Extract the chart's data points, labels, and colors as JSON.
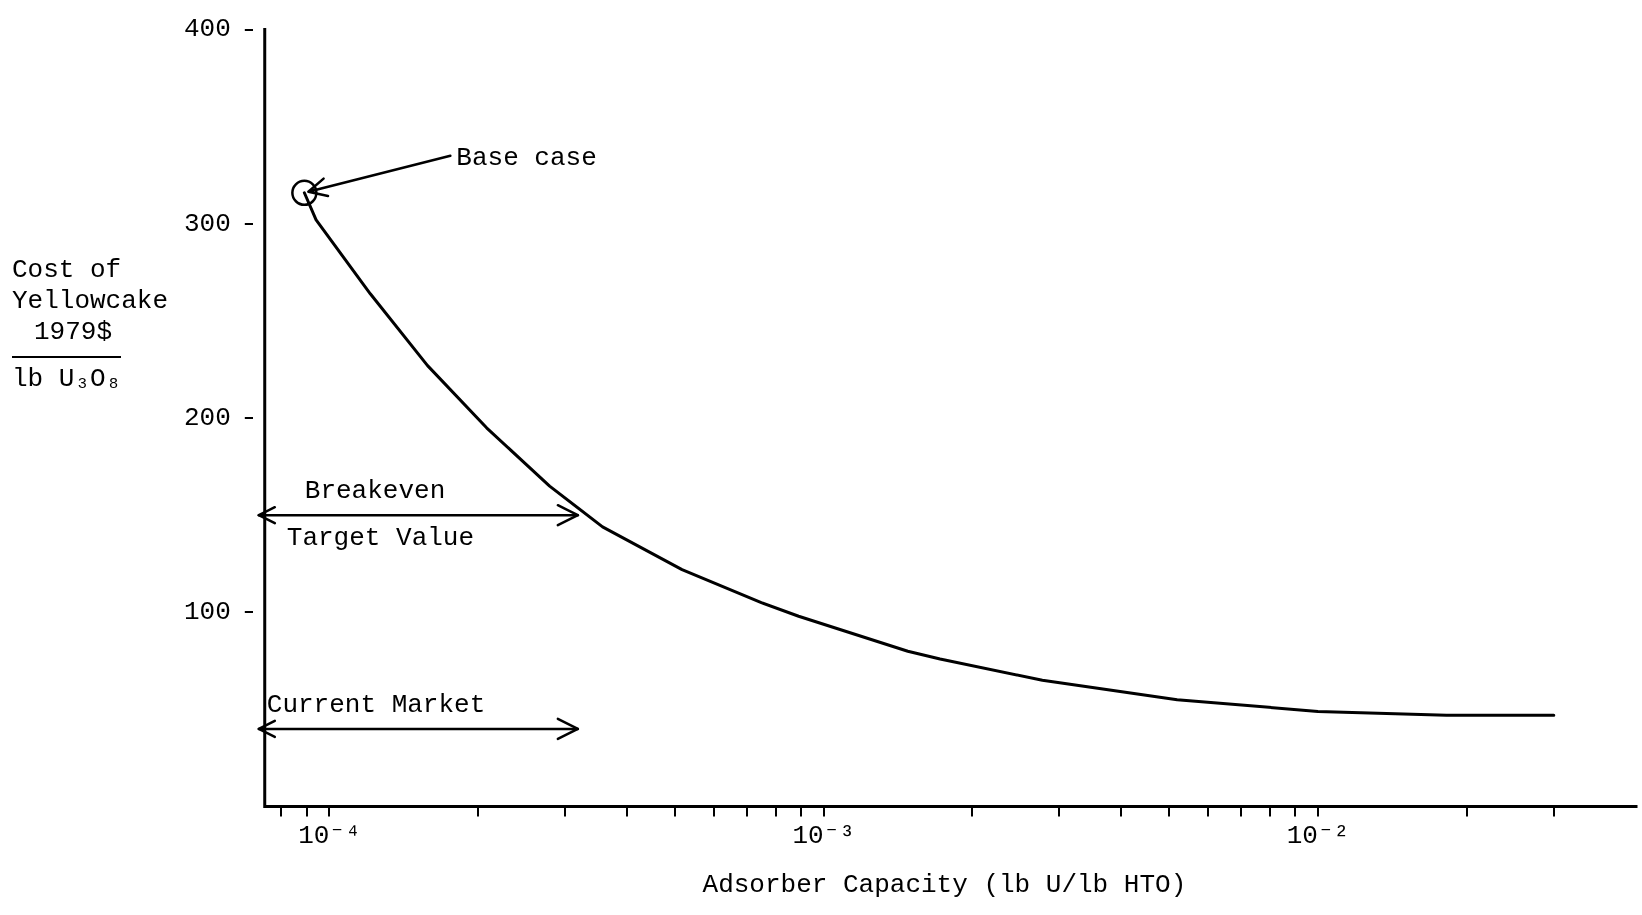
{
  "chart_data": {
    "type": "line",
    "xlabel": "Adsorber Capacity (lb U/lb HTO)",
    "ylabel": "Cost of\nYellowcake\n1979$\nlb U₃O₈",
    "log": "x",
    "xlim": [
      7.4e-05,
      0.044
    ],
    "xticks": [
      {
        "value": 8e-05,
        "label": null
      },
      {
        "value": 9e-05,
        "label": null
      },
      {
        "value": 0.0001,
        "label": "10⁻⁴"
      },
      {
        "value": 0.0002,
        "label": null
      },
      {
        "value": 0.0003,
        "label": null
      },
      {
        "value": 0.0004,
        "label": null
      },
      {
        "value": 0.0005,
        "label": null
      },
      {
        "value": 0.0006,
        "label": null
      },
      {
        "value": 0.0007,
        "label": null
      },
      {
        "value": 0.0008,
        "label": null
      },
      {
        "value": 0.0009,
        "label": null
      },
      {
        "value": 0.001,
        "label": "10⁻³"
      },
      {
        "value": 0.002,
        "label": null
      },
      {
        "value": 0.003,
        "label": null
      },
      {
        "value": 0.004,
        "label": null
      },
      {
        "value": 0.005,
        "label": null
      },
      {
        "value": 0.006,
        "label": null
      },
      {
        "value": 0.007,
        "label": null
      },
      {
        "value": 0.008,
        "label": null
      },
      {
        "value": 0.009,
        "label": null
      },
      {
        "value": 0.01,
        "label": "10⁻²"
      },
      {
        "value": 0.02,
        "label": null
      },
      {
        "value": 0.03,
        "label": null
      }
    ],
    "ylim": [
      0,
      400
    ],
    "yticks": [
      100,
      200,
      300,
      400
    ],
    "series": [
      {
        "color": "#000000",
        "x": [
          8.9e-05,
          9.4e-05,
          0.000121,
          0.000158,
          0.000208,
          0.000279,
          0.000357,
          0.000517,
          0.000748,
          0.00089,
          0.00148,
          0.00172,
          0.00277,
          0.00519,
          0.01,
          0.0182,
          0.03
        ],
        "values": [
          316,
          302,
          264,
          227,
          195,
          165,
          144,
          122,
          105,
          98,
          80,
          76,
          65,
          55,
          49,
          47,
          47
        ]
      }
    ],
    "annotations": [
      {
        "text": "Base case",
        "x": 8.9e-05,
        "y": 316
      }
    ],
    "ref_lines": [
      {
        "axis": "y",
        "value": 150,
        "label": "Breakeven\nTarget Value"
      },
      {
        "axis": "y",
        "value": 40,
        "label": "Current Market"
      }
    ]
  }
}
